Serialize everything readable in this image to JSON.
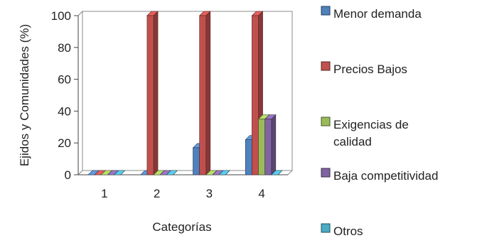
{
  "chart_data": {
    "type": "bar",
    "style": "3d-clustered-column",
    "title": "",
    "xlabel": "Categorías",
    "ylabel": "Ejidos y Comunidades (%)",
    "categories": [
      "1",
      "2",
      "3",
      "4"
    ],
    "ylim": [
      0,
      100
    ],
    "yticks": [
      "0",
      "20",
      "40",
      "60",
      "80",
      "100"
    ],
    "grid": "horizontal",
    "legend_position": "right",
    "series": [
      {
        "name": "Menor demanda",
        "color": "#4F81BD",
        "values": [
          0,
          0,
          17,
          22
        ]
      },
      {
        "name": "Precios Bajos",
        "color": "#C0504D",
        "values": [
          0,
          100,
          100,
          100
        ]
      },
      {
        "name": "Exigencias de calidad",
        "name_lines": [
          "Exigencias de",
          "calidad"
        ],
        "color": "#9BBB59",
        "values": [
          0,
          0,
          0,
          35
        ]
      },
      {
        "name": "Baja competitividad",
        "color": "#8064A2",
        "values": [
          0,
          0,
          0,
          35
        ]
      },
      {
        "name": "Otros",
        "color": "#4BACC6",
        "values": [
          0,
          0,
          0,
          0
        ]
      }
    ]
  }
}
